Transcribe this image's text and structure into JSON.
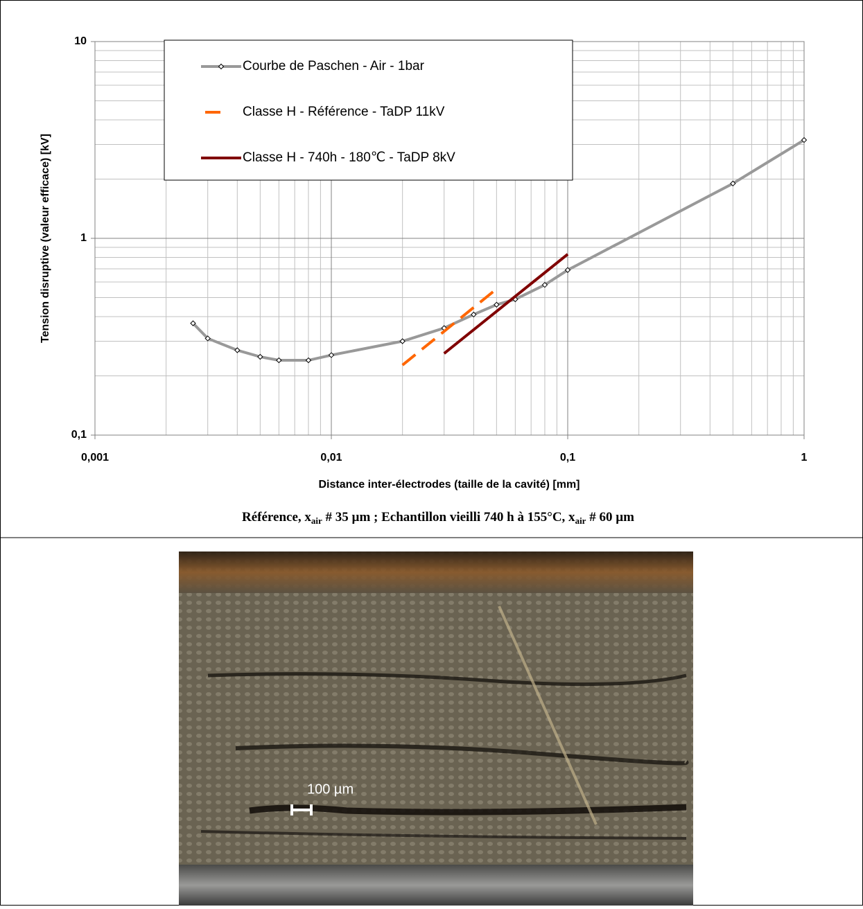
{
  "chart_data": {
    "type": "line",
    "x_label": "Distance inter-électrodes (taille de la cavité) [mm]",
    "y_label": "Tension disruptive (valeur efficace) [kV]",
    "x_log": true,
    "y_log": true,
    "grid": true,
    "minor_grid": true,
    "legend": "top-left",
    "xlim": [
      0.001,
      1
    ],
    "ylim": [
      0.1,
      10
    ],
    "xticks": [
      {
        "value": 0.001,
        "label": "0,001"
      },
      {
        "value": 0.01,
        "label": "0,01"
      },
      {
        "value": 0.1,
        "label": "0,1"
      },
      1
    ],
    "yticks": [
      {
        "value": 0.1,
        "label": "0,1"
      },
      1,
      10
    ],
    "series": [
      {
        "name": "Courbe de Paschen - Air - 1bar",
        "color": "#999999",
        "style": "solid",
        "markers": true,
        "x": [
          0.0026,
          0.003,
          0.004,
          0.005,
          0.006,
          0.008,
          0.01,
          0.02,
          0.03,
          0.04,
          0.05,
          0.06,
          0.08,
          0.1,
          0.5,
          1
        ],
        "values": [
          0.37,
          0.31,
          0.27,
          0.25,
          0.24,
          0.24,
          0.255,
          0.3,
          0.35,
          0.41,
          0.46,
          0.49,
          0.58,
          0.69,
          1.9,
          3.16
        ]
      },
      {
        "name": "Classe H - Référence - TaDP 11kV",
        "color": "#ff6600",
        "style": "dashed",
        "markers": false,
        "x": [
          0.02,
          0.05
        ],
        "values": [
          0.227,
          0.553
        ]
      },
      {
        "name": "Classe H - 740h - 180℃ - TaDP 8kV",
        "color": "#800000",
        "style": "solid",
        "markers": false,
        "x": [
          0.03,
          0.1
        ],
        "values": [
          0.26,
          0.83
        ]
      }
    ]
  },
  "caption": [
    "Référence, x",
    "air",
    " # 35 µm ; Echantillon vieilli 740 h à 155°C, x",
    "air",
    " # 60 µm"
  ],
  "photo": {
    "scale_bar_label": "100 µm"
  }
}
